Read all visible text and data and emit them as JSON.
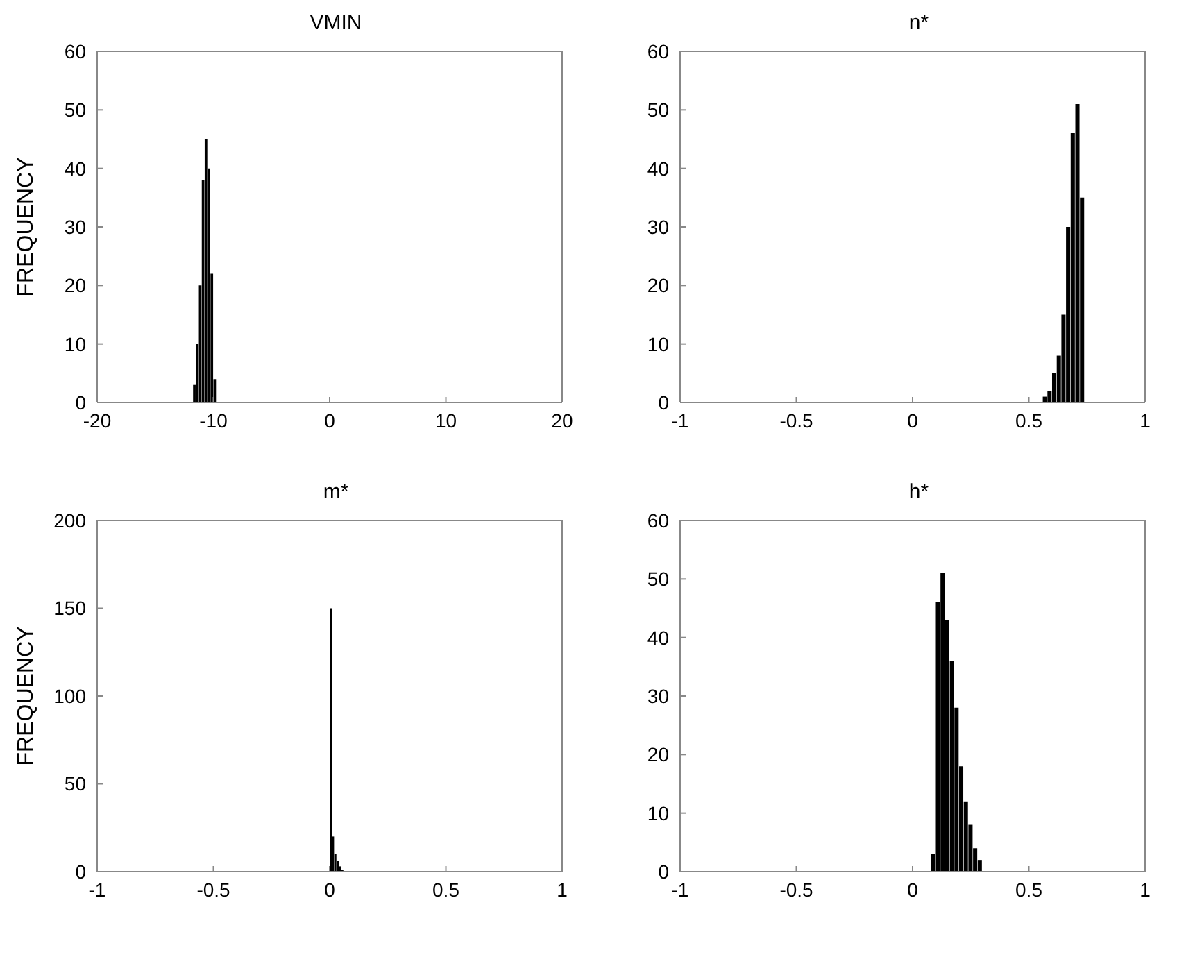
{
  "chart_data": [
    {
      "type": "histogram",
      "title": "VMIN",
      "ylabel": "FREQUENCY",
      "color": "#000000",
      "bins": [
        -11.75,
        -11.5,
        -11.25,
        -11,
        -10.75,
        -10.5,
        -10.25,
        -10,
        -9.75
      ],
      "values": [
        3,
        10,
        20,
        38,
        45,
        40,
        22,
        4
      ],
      "xlim": [
        -20,
        20
      ],
      "xticks": [
        -20,
        -10,
        0,
        10,
        20
      ],
      "ylim": [
        0,
        60
      ],
      "yticks": [
        0,
        10,
        20,
        30,
        40,
        50,
        60
      ],
      "grid": false,
      "legend": false
    },
    {
      "type": "histogram",
      "title": "n*",
      "color": "#000000",
      "bins": [
        0.56,
        0.58,
        0.6,
        0.62,
        0.64,
        0.66,
        0.68,
        0.7,
        0.72,
        0.74
      ],
      "values": [
        1,
        2,
        5,
        8,
        15,
        30,
        46,
        51,
        35
      ],
      "xlim": [
        -1,
        1
      ],
      "xticks": [
        -1,
        -0.5,
        0,
        0.5,
        1
      ],
      "ylim": [
        0,
        60
      ],
      "yticks": [
        0,
        10,
        20,
        30,
        40,
        50,
        60
      ],
      "grid": false,
      "legend": false
    },
    {
      "type": "histogram",
      "title": "m*",
      "ylabel": "FREQUENCY",
      "color": "#000000",
      "bins": [
        0,
        0.01,
        0.02,
        0.03,
        0.04,
        0.05,
        0.06
      ],
      "values": [
        150,
        20,
        10,
        6,
        3,
        1
      ],
      "xlim": [
        -1,
        1
      ],
      "xticks": [
        -1,
        -0.5,
        0,
        0.5,
        1
      ],
      "ylim": [
        0,
        200
      ],
      "yticks": [
        0,
        50,
        100,
        150,
        200
      ],
      "grid": false,
      "legend": false
    },
    {
      "type": "histogram",
      "title": "h*",
      "color": "#000000",
      "bins": [
        0.08,
        0.1,
        0.12,
        0.14,
        0.16,
        0.18,
        0.2,
        0.22,
        0.24,
        0.26,
        0.28,
        0.3
      ],
      "values": [
        3,
        46,
        51,
        43,
        36,
        28,
        18,
        12,
        8,
        4,
        2
      ],
      "xlim": [
        -1,
        1
      ],
      "xticks": [
        -1,
        -0.5,
        0,
        0.5,
        1
      ],
      "ylim": [
        0,
        60
      ],
      "yticks": [
        0,
        10,
        20,
        30,
        40,
        50,
        60
      ],
      "grid": false,
      "legend": false
    }
  ]
}
